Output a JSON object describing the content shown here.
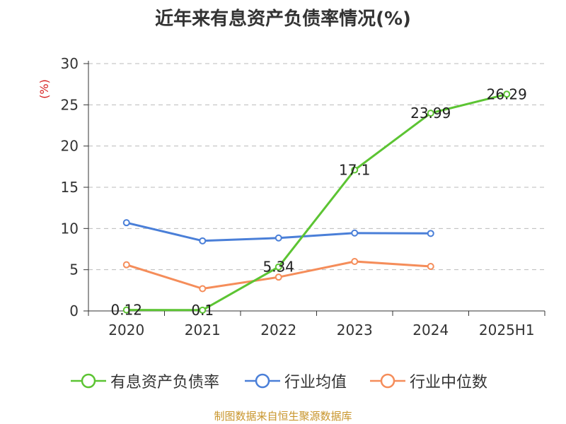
{
  "title": "近年来有息资产负债率情况(%)",
  "source": "制图数据来自恒生聚源数据库",
  "chart_data": {
    "type": "line",
    "title": "近年来有息资产负债率情况(%)",
    "unit_label": "(%)",
    "categories": [
      "2020",
      "2021",
      "2022",
      "2023",
      "2024",
      "2025H1"
    ],
    "ylim": [
      0,
      30
    ],
    "yticks": [
      0,
      5,
      10,
      15,
      20,
      25,
      30
    ],
    "grid": true,
    "legend_position": "bottom",
    "series": [
      {
        "name": "有息资产负债率",
        "color": "#5cc433",
        "values": [
          0.12,
          0.1,
          5.34,
          17.1,
          23.99,
          26.29
        ],
        "labels": [
          "0.12",
          "0.1",
          "5.34",
          "17.1",
          "23.99",
          "26.29"
        ]
      },
      {
        "name": "行业均值",
        "color": "#4a7fd8",
        "values": [
          10.7,
          8.5,
          8.85,
          9.45,
          9.4,
          null
        ]
      },
      {
        "name": "行业中位数",
        "color": "#f58d5a",
        "values": [
          5.6,
          2.7,
          4.1,
          6.0,
          5.4,
          null
        ]
      }
    ]
  }
}
